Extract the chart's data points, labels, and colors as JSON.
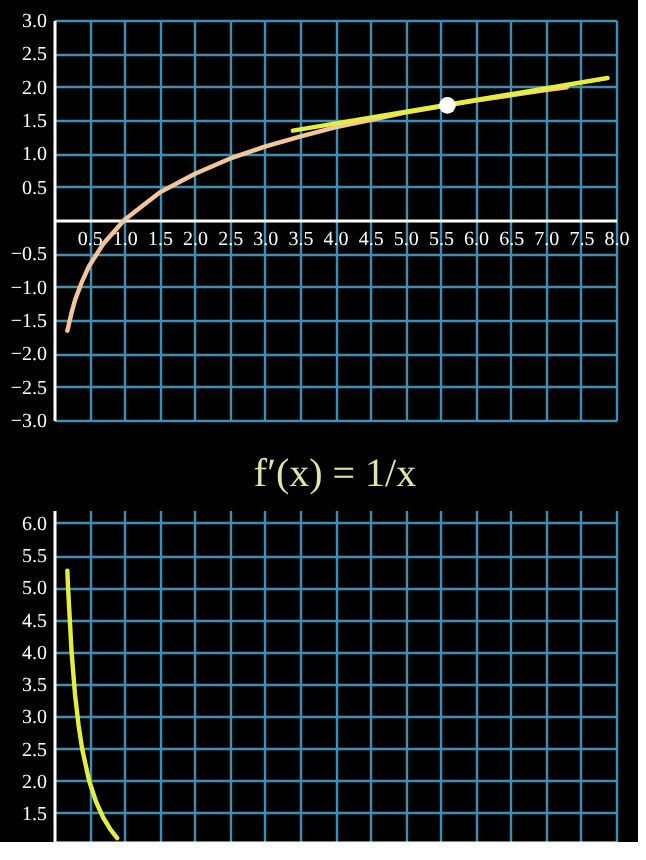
{
  "chart_data": [
    {
      "type": "line",
      "xlim": [
        0,
        8
      ],
      "ylim": [
        -3,
        3
      ],
      "grid": true,
      "xticks": [
        {
          "value": 0.5,
          "label": "0.5"
        },
        {
          "value": 1,
          "label": "1.0"
        },
        {
          "value": 1.5,
          "label": "1.5"
        },
        {
          "value": 2,
          "label": "2.0"
        },
        {
          "value": 2.5,
          "label": "2.5"
        },
        {
          "value": 3,
          "label": "3.0"
        },
        {
          "value": 3.5,
          "label": "3.5"
        },
        {
          "value": 4,
          "label": "4.0"
        },
        {
          "value": 4.5,
          "label": "4.5"
        },
        {
          "value": 5,
          "label": "5.0"
        },
        {
          "value": 5.5,
          "label": "5.5"
        },
        {
          "value": 6,
          "label": "6.0"
        },
        {
          "value": 6.5,
          "label": "6.5"
        },
        {
          "value": 7,
          "label": "7.0"
        },
        {
          "value": 7.5,
          "label": "7.5"
        },
        {
          "value": 8,
          "label": "8.0"
        }
      ],
      "yticks": [
        {
          "value": -3,
          "label": "−3.0"
        },
        {
          "value": -2.5,
          "label": "−2.5"
        },
        {
          "value": -2,
          "label": "−2.0"
        },
        {
          "value": -1.5,
          "label": "−1.5"
        },
        {
          "value": -1,
          "label": "−1.0"
        },
        {
          "value": -0.5,
          "label": "−0.5"
        },
        {
          "value": 0.5,
          "label": "0.5"
        },
        {
          "value": 1,
          "label": "1.0"
        },
        {
          "value": 1.5,
          "label": "1.5"
        },
        {
          "value": 2,
          "label": "2.0"
        },
        {
          "value": 2.5,
          "label": "2.5"
        },
        {
          "value": 3,
          "label": "3.0"
        }
      ],
      "series": [
        {
          "color": "#f3c59a",
          "x": [
            0.19,
            0.25,
            0.3,
            0.4,
            0.5,
            0.7,
            1,
            1.5,
            2,
            2.5,
            3,
            3.5,
            4,
            4.5,
            5,
            5.5,
            6,
            6.5,
            7,
            7.3
          ],
          "values": [
            -1.66,
            -1.39,
            -1.2,
            -0.92,
            -0.69,
            -0.36,
            0,
            0.41,
            0.69,
            0.92,
            1.1,
            1.25,
            1.39,
            1.5,
            1.61,
            1.7,
            1.79,
            1.87,
            1.95,
            1.99
          ]
        },
        {
          "color": "#e6ee3c",
          "x": [
            3.4,
            7.88
          ],
          "values": [
            1.34,
            2.13
          ]
        },
        {
          "type": "scatter",
          "color": "#ffffff",
          "x": [
            5.6
          ],
          "values": [
            1.72
          ]
        }
      ]
    },
    {
      "type": "line",
      "title": "f′(x) = 1/x",
      "xlim": [
        0,
        8
      ],
      "ylim": [
        1.05,
        6.2
      ],
      "grid": true,
      "tick_labels": "y",
      "xticks": [
        {
          "value": 0.5,
          "label": null
        },
        {
          "value": 1,
          "label": null
        },
        {
          "value": 1.5,
          "label": null
        },
        {
          "value": 2,
          "label": null
        },
        {
          "value": 2.5,
          "label": null
        },
        {
          "value": 3,
          "label": null
        },
        {
          "value": 3.5,
          "label": null
        },
        {
          "value": 4,
          "label": null
        },
        {
          "value": 4.5,
          "label": null
        },
        {
          "value": 5,
          "label": null
        },
        {
          "value": 5.5,
          "label": null
        },
        {
          "value": 6,
          "label": null
        },
        {
          "value": 6.5,
          "label": null
        },
        {
          "value": 7,
          "label": null
        },
        {
          "value": 7.5,
          "label": null
        },
        {
          "value": 8,
          "label": null
        }
      ],
      "yticks": [
        {
          "value": 1.5,
          "label": "1.5"
        },
        {
          "value": 2,
          "label": "2.0"
        },
        {
          "value": 2.5,
          "label": "2.5"
        },
        {
          "value": 3,
          "label": "3.0"
        },
        {
          "value": 3.5,
          "label": "3.5"
        },
        {
          "value": 4,
          "label": "4.0"
        },
        {
          "value": 4.5,
          "label": "4.5"
        },
        {
          "value": 5,
          "label": "5.0"
        },
        {
          "value": 5.5,
          "label": "5.5"
        },
        {
          "value": 6,
          "label": "6.0"
        }
      ],
      "series": [
        {
          "color": "#e6ee3c",
          "x": [
            0.19,
            0.2,
            0.25,
            0.3,
            0.35,
            0.4,
            0.5,
            0.6,
            0.7,
            0.8,
            0.9
          ],
          "values": [
            5.26,
            5.0,
            4.0,
            3.33,
            2.86,
            2.5,
            2.0,
            1.67,
            1.43,
            1.25,
            1.11
          ]
        }
      ]
    }
  ]
}
